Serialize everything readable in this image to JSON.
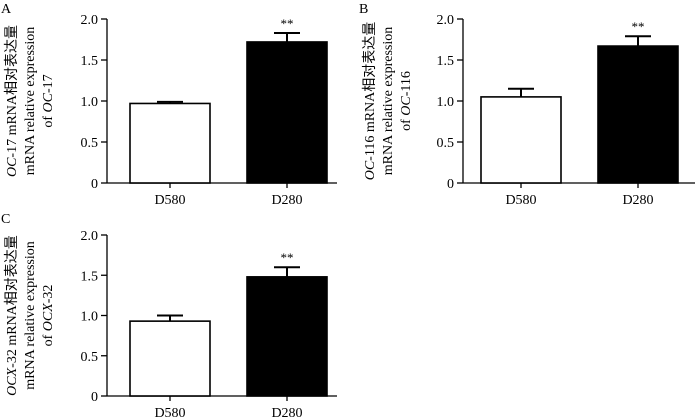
{
  "chart_data": [
    {
      "panel": "A",
      "type": "bar",
      "categories": [
        "D580",
        "D280"
      ],
      "series": [
        {
          "values": [
            0.97,
            1.72
          ],
          "errors": [
            0.02,
            0.11
          ],
          "colors": [
            "#ffffff",
            "#000000"
          ]
        }
      ],
      "significance": [
        "",
        "**"
      ],
      "ylabel_lines": [
        [
          {
            "t": "OC",
            "i": true
          },
          {
            "t": "-17 mRNA相对表达量",
            "i": false
          }
        ],
        [
          {
            "t": "mRNA relative expression",
            "i": false
          }
        ],
        [
          {
            "t": "of ",
            "i": false
          },
          {
            "t": "OC",
            "i": true
          },
          {
            "t": "-17",
            "i": false
          }
        ]
      ],
      "ylim": [
        0,
        2.0
      ],
      "yticks": [
        "0",
        "0.5",
        "1.0",
        "1.5",
        "2.0"
      ],
      "grid": false,
      "xlabel": ""
    },
    {
      "panel": "B",
      "type": "bar",
      "categories": [
        "D580",
        "D280"
      ],
      "series": [
        {
          "values": [
            1.05,
            1.67
          ],
          "errors": [
            0.1,
            0.12
          ],
          "colors": [
            "#ffffff",
            "#000000"
          ]
        }
      ],
      "significance": [
        "",
        "**"
      ],
      "ylabel_lines": [
        [
          {
            "t": "OC",
            "i": true
          },
          {
            "t": "-116 mRNA相对表达量",
            "i": false
          }
        ],
        [
          {
            "t": "mRNA relative expression",
            "i": false
          }
        ],
        [
          {
            "t": "of ",
            "i": false
          },
          {
            "t": "OC",
            "i": true
          },
          {
            "t": "-116",
            "i": false
          }
        ]
      ],
      "ylim": [
        0,
        2.0
      ],
      "yticks": [
        "0",
        "0.5",
        "1.0",
        "1.5",
        "2.0"
      ],
      "grid": false,
      "xlabel": ""
    },
    {
      "panel": "C",
      "type": "bar",
      "categories": [
        "D580",
        "D280"
      ],
      "series": [
        {
          "values": [
            0.93,
            1.48
          ],
          "errors": [
            0.07,
            0.12
          ],
          "colors": [
            "#ffffff",
            "#000000"
          ]
        }
      ],
      "significance": [
        "",
        "**"
      ],
      "ylabel_lines": [
        [
          {
            "t": "OCX",
            "i": true
          },
          {
            "t": "-32 mRNA相对表达量",
            "i": false
          }
        ],
        [
          {
            "t": "mRNA relative expression",
            "i": false
          }
        ],
        [
          {
            "t": "of ",
            "i": false
          },
          {
            "t": "OCX",
            "i": true
          },
          {
            "t": "-32",
            "i": false
          }
        ]
      ],
      "ylim": [
        0,
        2.0
      ],
      "yticks": [
        "0",
        "0.5",
        "1.0",
        "1.5",
        "2.0"
      ],
      "grid": false,
      "xlabel": ""
    }
  ]
}
